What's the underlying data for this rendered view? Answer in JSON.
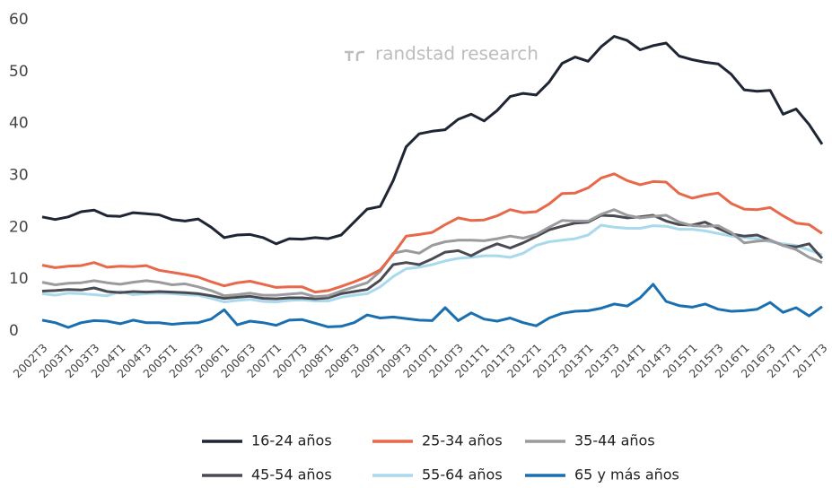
{
  "chart_data": {
    "type": "line",
    "watermark": "randstad research",
    "categories": [
      "2002T3",
      null,
      "2003T1",
      null,
      "2003T3",
      null,
      "2004T1",
      null,
      "2004T3",
      null,
      "2005T1",
      null,
      "2005T3",
      null,
      "2006T1",
      null,
      "2006T3",
      null,
      "2007T1",
      null,
      "2007T3",
      null,
      "2008T1",
      null,
      "2008T3",
      null,
      "2009T1",
      null,
      "2009T3",
      null,
      "2010T1",
      null,
      "2010T3",
      null,
      "2011T1",
      null,
      "2011T3",
      null,
      "2012T1",
      null,
      "2012T3",
      null,
      "2013T1",
      null,
      "2013T3",
      null,
      "2014T1",
      null,
      "2014T3",
      null,
      "2015T1",
      null,
      "2015T3",
      null,
      "2016T1",
      null,
      "2016T3",
      null,
      "2017T1",
      null,
      "2017T3"
    ],
    "ylim": [
      0,
      60
    ],
    "yticks": [
      0,
      10,
      20,
      30,
      40,
      50,
      60
    ],
    "grid": false,
    "series": [
      {
        "name": "16-24 años",
        "color": "#1e2633",
        "values": [
          22,
          21.5,
          22,
          23,
          23.3,
          22.2,
          22.1,
          22.8,
          22.6,
          22.4,
          21.5,
          21.2,
          21.6,
          20,
          18,
          18.5,
          18.6,
          18,
          16.8,
          17.8,
          17.7,
          18,
          17.8,
          18.5,
          21,
          23.5,
          24,
          29,
          35.5,
          38,
          38.5,
          38.8,
          40.8,
          41.8,
          40.5,
          42.5,
          45.2,
          45.8,
          45.5,
          48,
          51.6,
          52.8,
          52,
          54.8,
          56.8,
          56,
          54.2,
          55,
          55.5,
          53,
          52.3,
          51.8,
          51.5,
          49.5,
          46.5,
          46.2,
          46.4,
          41.8,
          42.8,
          39.8,
          36
        ]
      },
      {
        "name": "25-34 años",
        "color": "#e8684a",
        "values": [
          12.7,
          12.2,
          12.5,
          12.6,
          13.2,
          12.3,
          12.5,
          12.4,
          12.6,
          11.7,
          11.3,
          10.9,
          10.4,
          9.5,
          8.7,
          9.3,
          9.6,
          9.0,
          8.4,
          8.5,
          8.5,
          7.5,
          7.8,
          8.6,
          9.5,
          10.5,
          11.8,
          14.8,
          18.3,
          18.6,
          19.0,
          20.5,
          21.8,
          21.3,
          21.4,
          22.2,
          23.4,
          22.8,
          23.0,
          24.5,
          26.5,
          26.6,
          27.6,
          29.5,
          30.3,
          29.0,
          28.2,
          28.8,
          28.7,
          26.5,
          25.6,
          26.2,
          26.6,
          24.6,
          23.5,
          23.4,
          23.8,
          22.2,
          20.8,
          20.5,
          18.8
        ]
      },
      {
        "name": "35-44 años",
        "color": "#9b9b9e",
        "values": [
          9.4,
          8.9,
          9.2,
          9.3,
          9.7,
          9.3,
          9.0,
          9.4,
          9.7,
          9.4,
          8.9,
          9.1,
          8.5,
          7.8,
          6.8,
          7.0,
          7.3,
          6.9,
          6.9,
          7.1,
          7.3,
          6.6,
          6.8,
          7.7,
          8.5,
          9.3,
          11.5,
          15.0,
          15.5,
          15.0,
          16.5,
          17.2,
          17.5,
          17.5,
          17.4,
          17.8,
          18.3,
          17.9,
          18.6,
          20.0,
          21.3,
          21.2,
          21.2,
          22.5,
          23.4,
          22.3,
          21.8,
          22.1,
          22.3,
          21.0,
          20.3,
          20.2,
          20.3,
          19.0,
          17.0,
          17.3,
          17.5,
          16.5,
          15.7,
          14.2,
          13.2
        ]
      },
      {
        "name": "45-54 años",
        "color": "#4a4a52",
        "values": [
          7.7,
          7.8,
          8.0,
          7.9,
          8.3,
          7.6,
          7.4,
          7.6,
          7.5,
          7.6,
          7.5,
          7.4,
          7.2,
          6.8,
          6.3,
          6.5,
          6.7,
          6.3,
          6.2,
          6.4,
          6.4,
          6.2,
          6.4,
          7.2,
          7.6,
          8.0,
          9.8,
          12.8,
          13.2,
          12.8,
          13.9,
          15.2,
          15.5,
          14.5,
          15.8,
          16.8,
          16.0,
          17.0,
          18.2,
          19.5,
          20.2,
          20.8,
          21.0,
          22.3,
          22.2,
          21.8,
          22.0,
          22.3,
          21.2,
          20.5,
          20.4,
          21.0,
          19.8,
          18.7,
          18.3,
          18.5,
          17.5,
          16.5,
          16.2,
          16.8,
          14.0
        ]
      },
      {
        "name": "55-64 años",
        "color": "#a9d9ec",
        "values": [
          7.2,
          6.9,
          7.3,
          7.2,
          7.0,
          6.8,
          7.6,
          7.0,
          7.2,
          7.3,
          7.2,
          7.0,
          6.9,
          6.3,
          5.6,
          5.9,
          6.1,
          5.7,
          5.6,
          5.9,
          6.0,
          5.8,
          5.8,
          6.5,
          6.9,
          7.2,
          8.5,
          10.5,
          12.0,
          12.3,
          12.8,
          13.5,
          14.0,
          14.2,
          14.5,
          14.5,
          14.2,
          15.0,
          16.5,
          17.2,
          17.5,
          17.8,
          18.5,
          20.4,
          20.0,
          19.8,
          19.8,
          20.3,
          20.2,
          19.6,
          19.6,
          19.3,
          18.8,
          18.3,
          18.0,
          17.8,
          17.2,
          16.8,
          16.5,
          15.6,
          14.7
        ]
      },
      {
        "name": "65 y más años",
        "color": "#1a6fb0",
        "values": [
          2.1,
          1.6,
          0.7,
          1.6,
          2.0,
          1.9,
          1.4,
          2.1,
          1.6,
          1.6,
          1.3,
          1.5,
          1.6,
          2.3,
          4.1,
          1.2,
          1.9,
          1.6,
          1.1,
          2.1,
          2.2,
          1.5,
          0.8,
          0.9,
          1.6,
          3.1,
          2.5,
          2.7,
          2.4,
          2.1,
          2.0,
          4.5,
          2.0,
          3.5,
          2.3,
          1.9,
          2.5,
          1.6,
          1.0,
          2.5,
          3.4,
          3.8,
          3.9,
          4.4,
          5.2,
          4.8,
          6.4,
          9.0,
          5.7,
          4.9,
          4.6,
          5.2,
          4.2,
          3.8,
          3.9,
          4.2,
          5.5,
          3.6,
          4.5,
          2.9,
          4.7
        ]
      }
    ]
  }
}
